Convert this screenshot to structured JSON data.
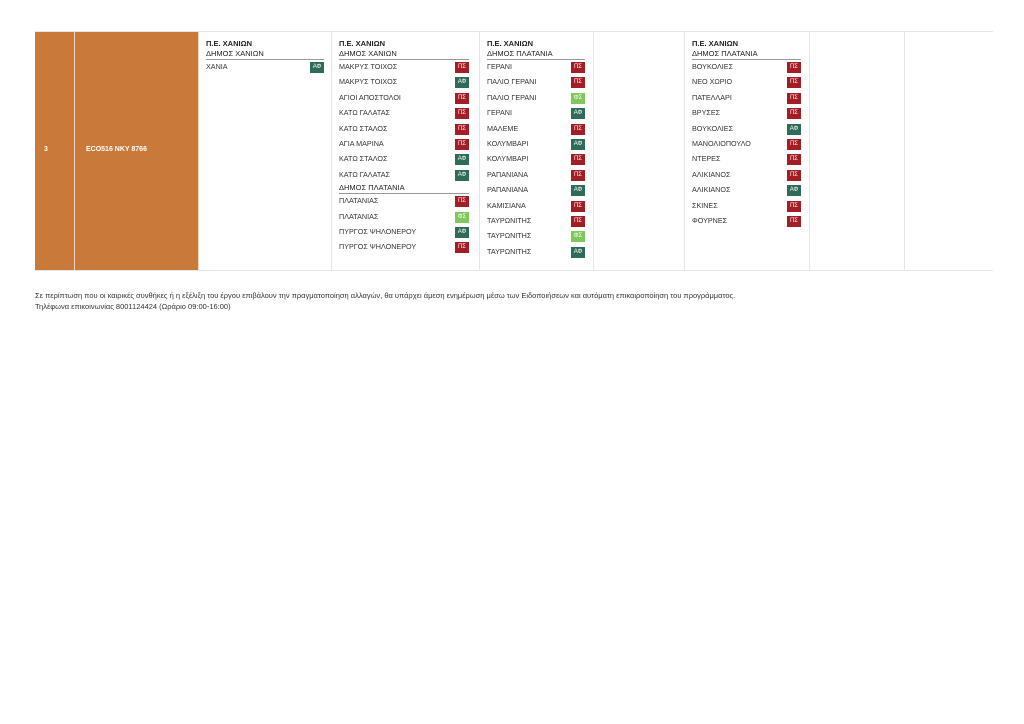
{
  "colors": {
    "orange": "#c97a3a",
    "PS": "#a31d25",
    "AF": "#2e6b58",
    "FS": "#7fc95c"
  },
  "row": {
    "number": "3",
    "code": "ECO516  NKY 8766"
  },
  "groups": [
    {
      "pe": "Π.Ε. ΧΑΝΙΩΝ",
      "sections": [
        {
          "dimos": "ΔΗΜΟΣ ΧΑΝΙΩΝ",
          "items": [
            {
              "name": "ΧΑΝΙΑ",
              "badge": "ΑΦ",
              "type": "AF"
            }
          ]
        }
      ]
    },
    {
      "pe": "Π.Ε. ΧΑΝΙΩΝ",
      "sections": [
        {
          "dimos": "ΔΗΜΟΣ ΧΑΝΙΩΝ",
          "items": [
            {
              "name": "ΜΑΚΡΥΣ ΤΟΙΧΟΣ",
              "badge": "ΠΣ",
              "type": "PS"
            },
            {
              "name": "ΜΑΚΡΥΣ ΤΟΙΧΟΣ",
              "badge": "ΑΦ",
              "type": "AF"
            },
            {
              "name": "ΑΓΙΟΙ ΑΠΟΣΤΟΛΟΙ",
              "badge": "ΠΣ",
              "type": "PS"
            },
            {
              "name": "ΚΑΤΩ ΓΑΛΑΤΑΣ",
              "badge": "ΠΣ",
              "type": "PS"
            },
            {
              "name": "ΚΑΤΩ ΣΤΑΛΟΣ",
              "badge": "ΠΣ",
              "type": "PS"
            },
            {
              "name": "ΑΓΙΑ ΜΑΡΙΝΑ",
              "badge": "ΠΣ",
              "type": "PS"
            },
            {
              "name": "ΚΑΤΩ ΣΤΑΛΟΣ",
              "badge": "ΑΦ",
              "type": "AF"
            },
            {
              "name": "ΚΑΤΩ ΓΑΛΑΤΑΣ",
              "badge": "ΑΦ",
              "type": "AF"
            }
          ]
        },
        {
          "dimos": "ΔΗΜΟΣ ΠΛΑΤΑΝΙΑ",
          "items": [
            {
              "name": "ΠΛΑΤΑΝΙΑΣ",
              "badge": "ΠΣ",
              "type": "PS"
            },
            {
              "name": "ΠΛΑΤΑΝΙΑΣ",
              "badge": "ΦΣ",
              "type": "FS"
            },
            {
              "name": "ΠΥΡΓΟΣ ΨΗΛΟΝΕΡΟΥ",
              "badge": "ΑΦ",
              "type": "AF"
            },
            {
              "name": "ΠΥΡΓΟΣ ΨΗΛΟΝΕΡΟΥ",
              "badge": "ΠΣ",
              "type": "PS"
            }
          ]
        }
      ]
    },
    {
      "pe": "Π.Ε. ΧΑΝΙΩΝ",
      "sections": [
        {
          "dimos": "ΔΗΜΟΣ ΠΛΑΤΑΝΙΑ",
          "items": [
            {
              "name": "ΓΕΡΑΝΙ",
              "badge": "ΠΣ",
              "type": "PS"
            },
            {
              "name": "ΠΑΛΙΟ ΓΕΡΑΝΙ",
              "badge": "ΠΣ",
              "type": "PS"
            },
            {
              "name": "ΠΑΛΙΟ ΓΕΡΑΝΙ",
              "badge": "ΦΣ",
              "type": "FS"
            },
            {
              "name": "ΓΕΡΑΝΙ",
              "badge": "ΑΦ",
              "type": "AF"
            },
            {
              "name": "ΜΑΛΕΜΕ",
              "badge": "ΠΣ",
              "type": "PS"
            },
            {
              "name": "ΚΟΛΥΜΒΑΡΙ",
              "badge": "ΑΦ",
              "type": "AF"
            },
            {
              "name": "ΚΟΛΥΜΒΑΡΙ",
              "badge": "ΠΣ",
              "type": "PS"
            },
            {
              "name": "ΡΑΠΑΝΙΑΝΑ",
              "badge": "ΠΣ",
              "type": "PS"
            },
            {
              "name": "ΡΑΠΑΝΙΑΝΑ",
              "badge": "ΑΦ",
              "type": "AF"
            },
            {
              "name": "ΚΑΜΙΣΙΑΝΑ",
              "badge": "ΠΣ",
              "type": "PS"
            },
            {
              "name": "ΤΑΥΡΩΝΙΤΗΣ",
              "badge": "ΠΣ",
              "type": "PS"
            },
            {
              "name": "ΤΑΥΡΩΝΙΤΗΣ",
              "badge": "ΦΣ",
              "type": "FS"
            },
            {
              "name": "ΤΑΥΡΩΝΙΤΗΣ",
              "badge": "ΑΦ",
              "type": "AF"
            }
          ]
        }
      ]
    },
    {
      "pe": "Π.Ε. ΧΑΝΙΩΝ",
      "sections": [
        {
          "dimos": "ΔΗΜΟΣ ΠΛΑΤΑΝΙΑ",
          "items": [
            {
              "name": "ΒΟΥΚΟΛΙΕΣ",
              "badge": "ΠΣ",
              "type": "PS"
            },
            {
              "name": "ΝΕΟ ΧΩΡΙΟ",
              "badge": "ΠΣ",
              "type": "PS"
            },
            {
              "name": "ΠΑΤΕΛΛΑΡΙ",
              "badge": "ΠΣ",
              "type": "PS"
            },
            {
              "name": "ΒΡΥΣΕΣ",
              "badge": "ΠΣ",
              "type": "PS"
            },
            {
              "name": "ΒΟΥΚΟΛΙΕΣ",
              "badge": "ΑΦ",
              "type": "AF"
            },
            {
              "name": "ΜΑΝΟΛΙΟΠΟΥΛΟ",
              "badge": "ΠΣ",
              "type": "PS"
            },
            {
              "name": "ΝΤΕΡΕΣ",
              "badge": "ΠΣ",
              "type": "PS"
            },
            {
              "name": "ΑΛΙΚΙΑΝΟΣ",
              "badge": "ΠΣ",
              "type": "PS"
            },
            {
              "name": "ΑΛΙΚΙΑΝΟΣ",
              "badge": "ΑΦ",
              "type": "AF"
            },
            {
              "name": "ΣΚΙΝΕΣ",
              "badge": "ΠΣ",
              "type": "PS"
            },
            {
              "name": "ΦΟΥΡΝΕΣ",
              "badge": "ΠΣ",
              "type": "PS"
            }
          ]
        }
      ]
    }
  ],
  "footer": {
    "line1": "Σε περίπτωση που οι καιρικές συνθήκες ή η εξέλιξη του έργου επιβάλουν την πραγματοποίηση αλλαγών, θα υπάρχει άμεση ενημέρωση μέσω των Ειδοποιήσεων και αυτόματη επικαιροποίηση του προγράμματος.",
    "line2": "Τηλέφωνα επικοινωνίας 8001124424 (Ωράριο 09:00-16:00)"
  }
}
